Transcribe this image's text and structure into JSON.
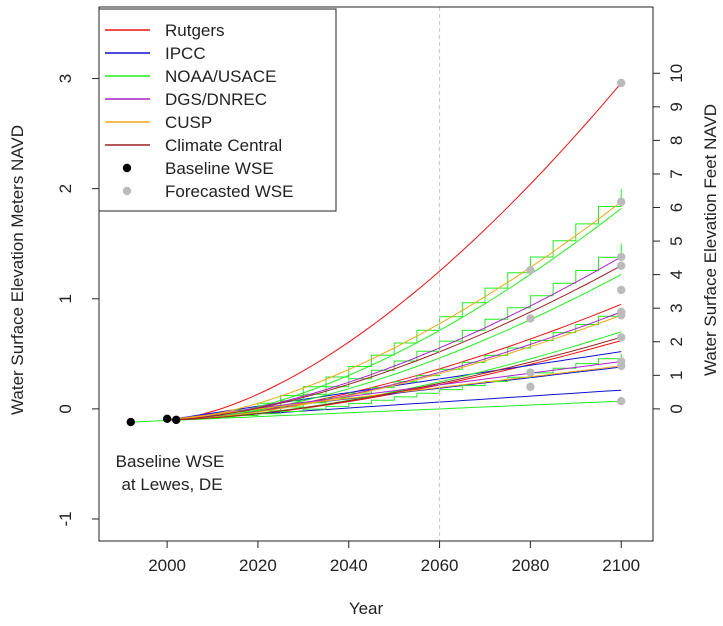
{
  "chart_data": {
    "type": "line",
    "xlabel": "Year",
    "ylabel_left": "Water Surface Elevation Meters NAVD",
    "ylabel_right": "Water Surface Elevation Feet NAVD",
    "xlim": [
      1985,
      2107
    ],
    "ylim": [
      -1.2,
      3.65
    ],
    "x_ticks": [
      2000,
      2020,
      2040,
      2060,
      2080,
      2100
    ],
    "y_ticks": [
      -1,
      0,
      1,
      2,
      3
    ],
    "y2_ticks": [
      0,
      1,
      2,
      3,
      4,
      5,
      6,
      7,
      8,
      9,
      10
    ],
    "y2_feet_per_meter": 3.28084,
    "reference_line_x": 2060,
    "annotation": [
      "Baseline WSE",
      "at Lewes, DE"
    ],
    "legend": {
      "position": "top-left",
      "entries": [
        {
          "label": "Rutgers",
          "type": "line",
          "color": "#ee1111"
        },
        {
          "label": "IPCC",
          "type": "line",
          "color": "#1111cc"
        },
        {
          "label": "NOAA/USACE",
          "type": "line",
          "color": "#22ee22"
        },
        {
          "label": "DGS/DNREC",
          "type": "line",
          "color": "#aa22cc"
        },
        {
          "label": "CUSP",
          "type": "line",
          "color": "#f0a818"
        },
        {
          "label": "Climate Central",
          "type": "line",
          "color": "#9b2222"
        },
        {
          "label": "Baseline WSE",
          "type": "point",
          "color": "#000000"
        },
        {
          "label": "Forecasted WSE",
          "type": "point",
          "color": "#bbbbbb"
        }
      ]
    },
    "baseline_points": [
      {
        "x": 1992,
        "y": -0.12
      },
      {
        "x": 2000,
        "y": -0.09
      },
      {
        "x": 2002,
        "y": -0.1
      }
    ],
    "forecast_points": [
      {
        "x": 2080,
        "y": 1.26
      },
      {
        "x": 2080,
        "y": 0.82
      },
      {
        "x": 2080,
        "y": 0.33
      },
      {
        "x": 2080,
        "y": 0.2
      },
      {
        "x": 2100,
        "y": 2.96
      },
      {
        "x": 2100,
        "y": 1.88
      },
      {
        "x": 2100,
        "y": 1.38
      },
      {
        "x": 2100,
        "y": 1.3
      },
      {
        "x": 2100,
        "y": 1.08
      },
      {
        "x": 2100,
        "y": 0.88
      },
      {
        "x": 2100,
        "y": 0.85
      },
      {
        "x": 2100,
        "y": 0.65
      },
      {
        "x": 2100,
        "y": 0.43
      },
      {
        "x": 2100,
        "y": 0.39
      },
      {
        "x": 2100,
        "y": 0.07
      }
    ],
    "series": [
      {
        "color": "#ee1111",
        "x0": 2000,
        "y0": -0.1,
        "y_end": 2.96,
        "shape": "curve"
      },
      {
        "color": "#ee1111",
        "x0": 2000,
        "y0": -0.1,
        "y_end": 0.95,
        "shape": "curve"
      },
      {
        "color": "#ee1111",
        "x0": 2000,
        "y0": -0.1,
        "y_end": 0.62,
        "shape": "curve"
      },
      {
        "color": "#1111cc",
        "x0": 2000,
        "y0": -0.1,
        "y_end": 0.52,
        "shape": "line"
      },
      {
        "color": "#1111cc",
        "x0": 2000,
        "y0": -0.1,
        "y_end": 0.38,
        "shape": "line"
      },
      {
        "color": "#1111cc",
        "x0": 2000,
        "y0": -0.1,
        "y_end": 0.17,
        "shape": "line"
      },
      {
        "color": "#22ee22",
        "x0": 2005,
        "y0": -0.08,
        "y_end": 2.0,
        "shape": "step"
      },
      {
        "color": "#22ee22",
        "x0": 2005,
        "y0": -0.08,
        "y_end": 1.82,
        "shape": "curve"
      },
      {
        "color": "#22ee22",
        "x0": 2005,
        "y0": -0.08,
        "y_end": 1.5,
        "shape": "step"
      },
      {
        "color": "#22ee22",
        "x0": 2005,
        "y0": -0.08,
        "y_end": 1.22,
        "shape": "curve"
      },
      {
        "color": "#22ee22",
        "x0": 2005,
        "y0": -0.08,
        "y_end": 0.92,
        "shape": "step"
      },
      {
        "color": "#22ee22",
        "x0": 2005,
        "y0": -0.08,
        "y_end": 0.7,
        "shape": "curve"
      },
      {
        "color": "#22ee22",
        "x0": 2005,
        "y0": -0.08,
        "y_end": 0.5,
        "shape": "step"
      },
      {
        "color": "#22ee22",
        "x0": 1992,
        "y0": -0.12,
        "y_end": 0.07,
        "shape": "line"
      },
      {
        "color": "#aa22cc",
        "x0": 2000,
        "y0": -0.1,
        "y_end": 1.38,
        "shape": "curve"
      },
      {
        "color": "#aa22cc",
        "x0": 2000,
        "y0": -0.1,
        "y_end": 0.88,
        "shape": "curve"
      },
      {
        "color": "#aa22cc",
        "x0": 2000,
        "y0": -0.1,
        "y_end": 0.43,
        "shape": "line"
      },
      {
        "color": "#f0a818",
        "x0": 2000,
        "y0": -0.1,
        "y_end": 1.88,
        "shape": "curve"
      },
      {
        "color": "#f0a818",
        "x0": 2000,
        "y0": -0.1,
        "y_end": 0.85,
        "shape": "curve"
      },
      {
        "color": "#f0a818",
        "x0": 2000,
        "y0": -0.1,
        "y_end": 0.39,
        "shape": "line"
      },
      {
        "color": "#9b2222",
        "x0": 2000,
        "y0": -0.1,
        "y_end": 1.3,
        "shape": "curve"
      },
      {
        "color": "#9b2222",
        "x0": 2000,
        "y0": -0.1,
        "y_end": 0.65,
        "shape": "curve"
      }
    ]
  }
}
